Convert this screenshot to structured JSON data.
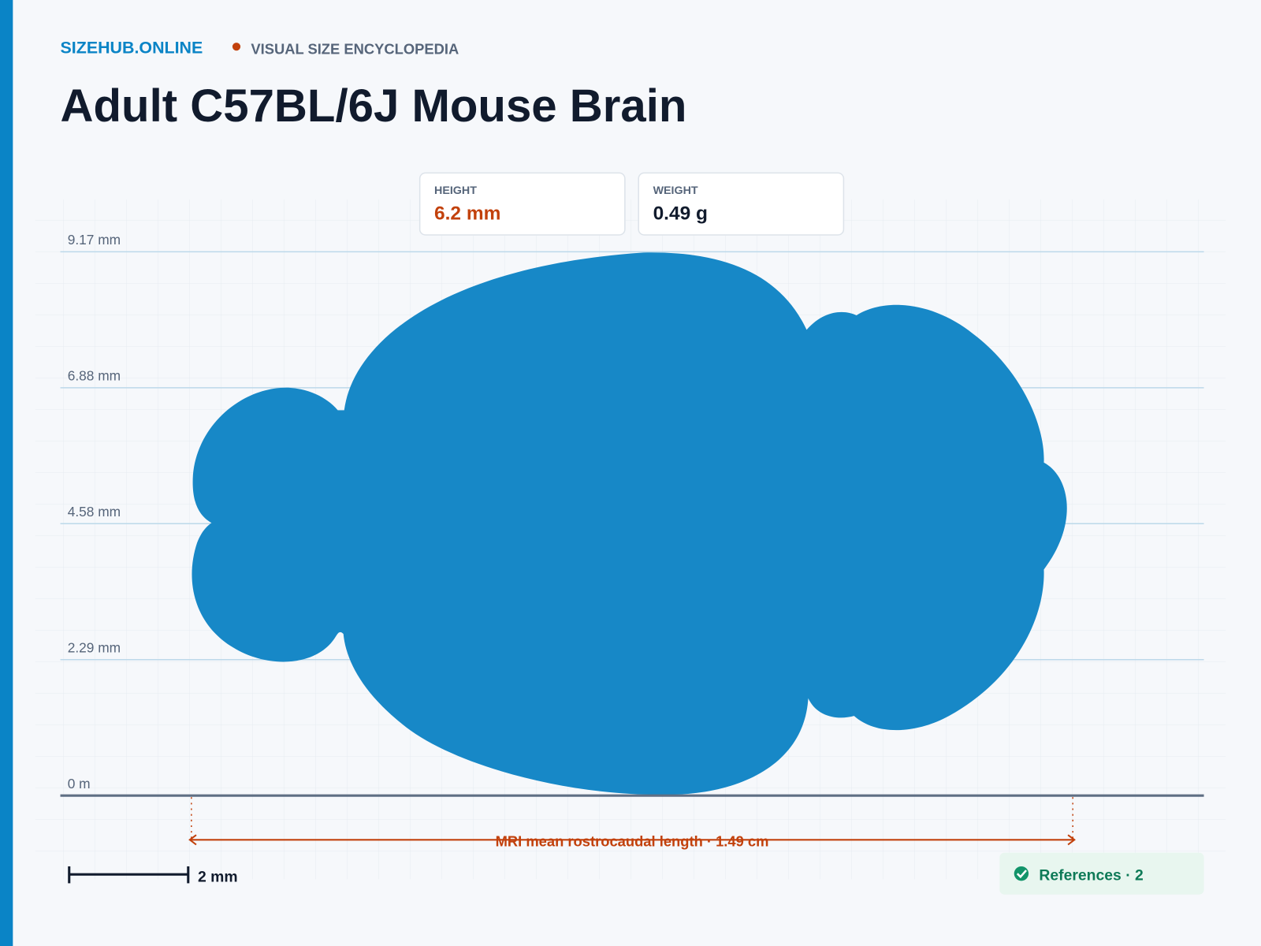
{
  "header": {
    "brand": "SIZEHUB.ONLINE",
    "tagline": "VISUAL SIZE ENCYCLOPEDIA",
    "title": "Adult C57BL/6J Mouse Brain"
  },
  "metrics": [
    {
      "label": "HEIGHT",
      "value": "6.2 mm"
    },
    {
      "label": "WEIGHT",
      "value": "0.49 g"
    }
  ],
  "ruler": {
    "labels": [
      "9.17 mm",
      "6.88 mm",
      "4.58 mm",
      "2.29 mm",
      "0 m"
    ]
  },
  "dimension": {
    "label": "MRI mean rostrocaudal length · 1.49 cm"
  },
  "scale_bar": {
    "label": "2 mm"
  },
  "references": {
    "label": "References · 2"
  }
}
